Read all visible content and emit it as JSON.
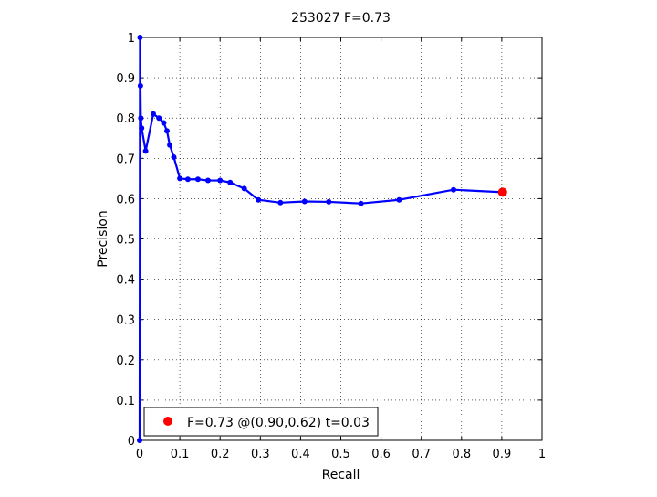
{
  "chart_data": {
    "type": "line",
    "title": "253027 F=0.73",
    "xlabel": "Recall",
    "ylabel": "Precision",
    "xlim": [
      0,
      1
    ],
    "ylim": [
      0,
      1
    ],
    "xticks": [
      0,
      0.1,
      0.2,
      0.3,
      0.4,
      0.5,
      0.6,
      0.7,
      0.8,
      0.9,
      1
    ],
    "yticks": [
      0,
      0.1,
      0.2,
      0.3,
      0.4,
      0.5,
      0.6,
      0.7,
      0.8,
      0.9,
      1
    ],
    "xtick_labels": [
      "0",
      "0.1",
      "0.2",
      "0.3",
      "0.4",
      "0.5",
      "0.6",
      "0.7",
      "0.8",
      "0.9",
      "1"
    ],
    "ytick_labels": [
      "0",
      "0.1",
      "0.2",
      "0.3",
      "0.4",
      "0.5",
      "0.6",
      "0.7",
      "0.8",
      "0.9",
      "1"
    ],
    "grid": true,
    "legend_position": "bottom-left",
    "series": [
      {
        "color": "#0000ff",
        "x": [
          0.0,
          0.001,
          0.002,
          0.003,
          0.005,
          0.015,
          0.034,
          0.048,
          0.06,
          0.068,
          0.075,
          0.085,
          0.1,
          0.12,
          0.145,
          0.17,
          0.2,
          0.225,
          0.26,
          0.295,
          0.35,
          0.41,
          0.47,
          0.55,
          0.645,
          0.78,
          0.902
        ],
        "y": [
          0.0,
          1.0,
          0.88,
          0.8,
          0.775,
          0.718,
          0.81,
          0.8,
          0.788,
          0.768,
          0.733,
          0.703,
          0.65,
          0.648,
          0.648,
          0.645,
          0.645,
          0.64,
          0.625,
          0.597,
          0.59,
          0.593,
          0.592,
          0.588,
          0.597,
          0.622,
          0.616
        ]
      }
    ],
    "best_point": {
      "color": "#ff0000",
      "x": 0.902,
      "y": 0.616
    },
    "legend": {
      "label": "F=0.73 @(0.90,0.62) t=0.03"
    }
  }
}
